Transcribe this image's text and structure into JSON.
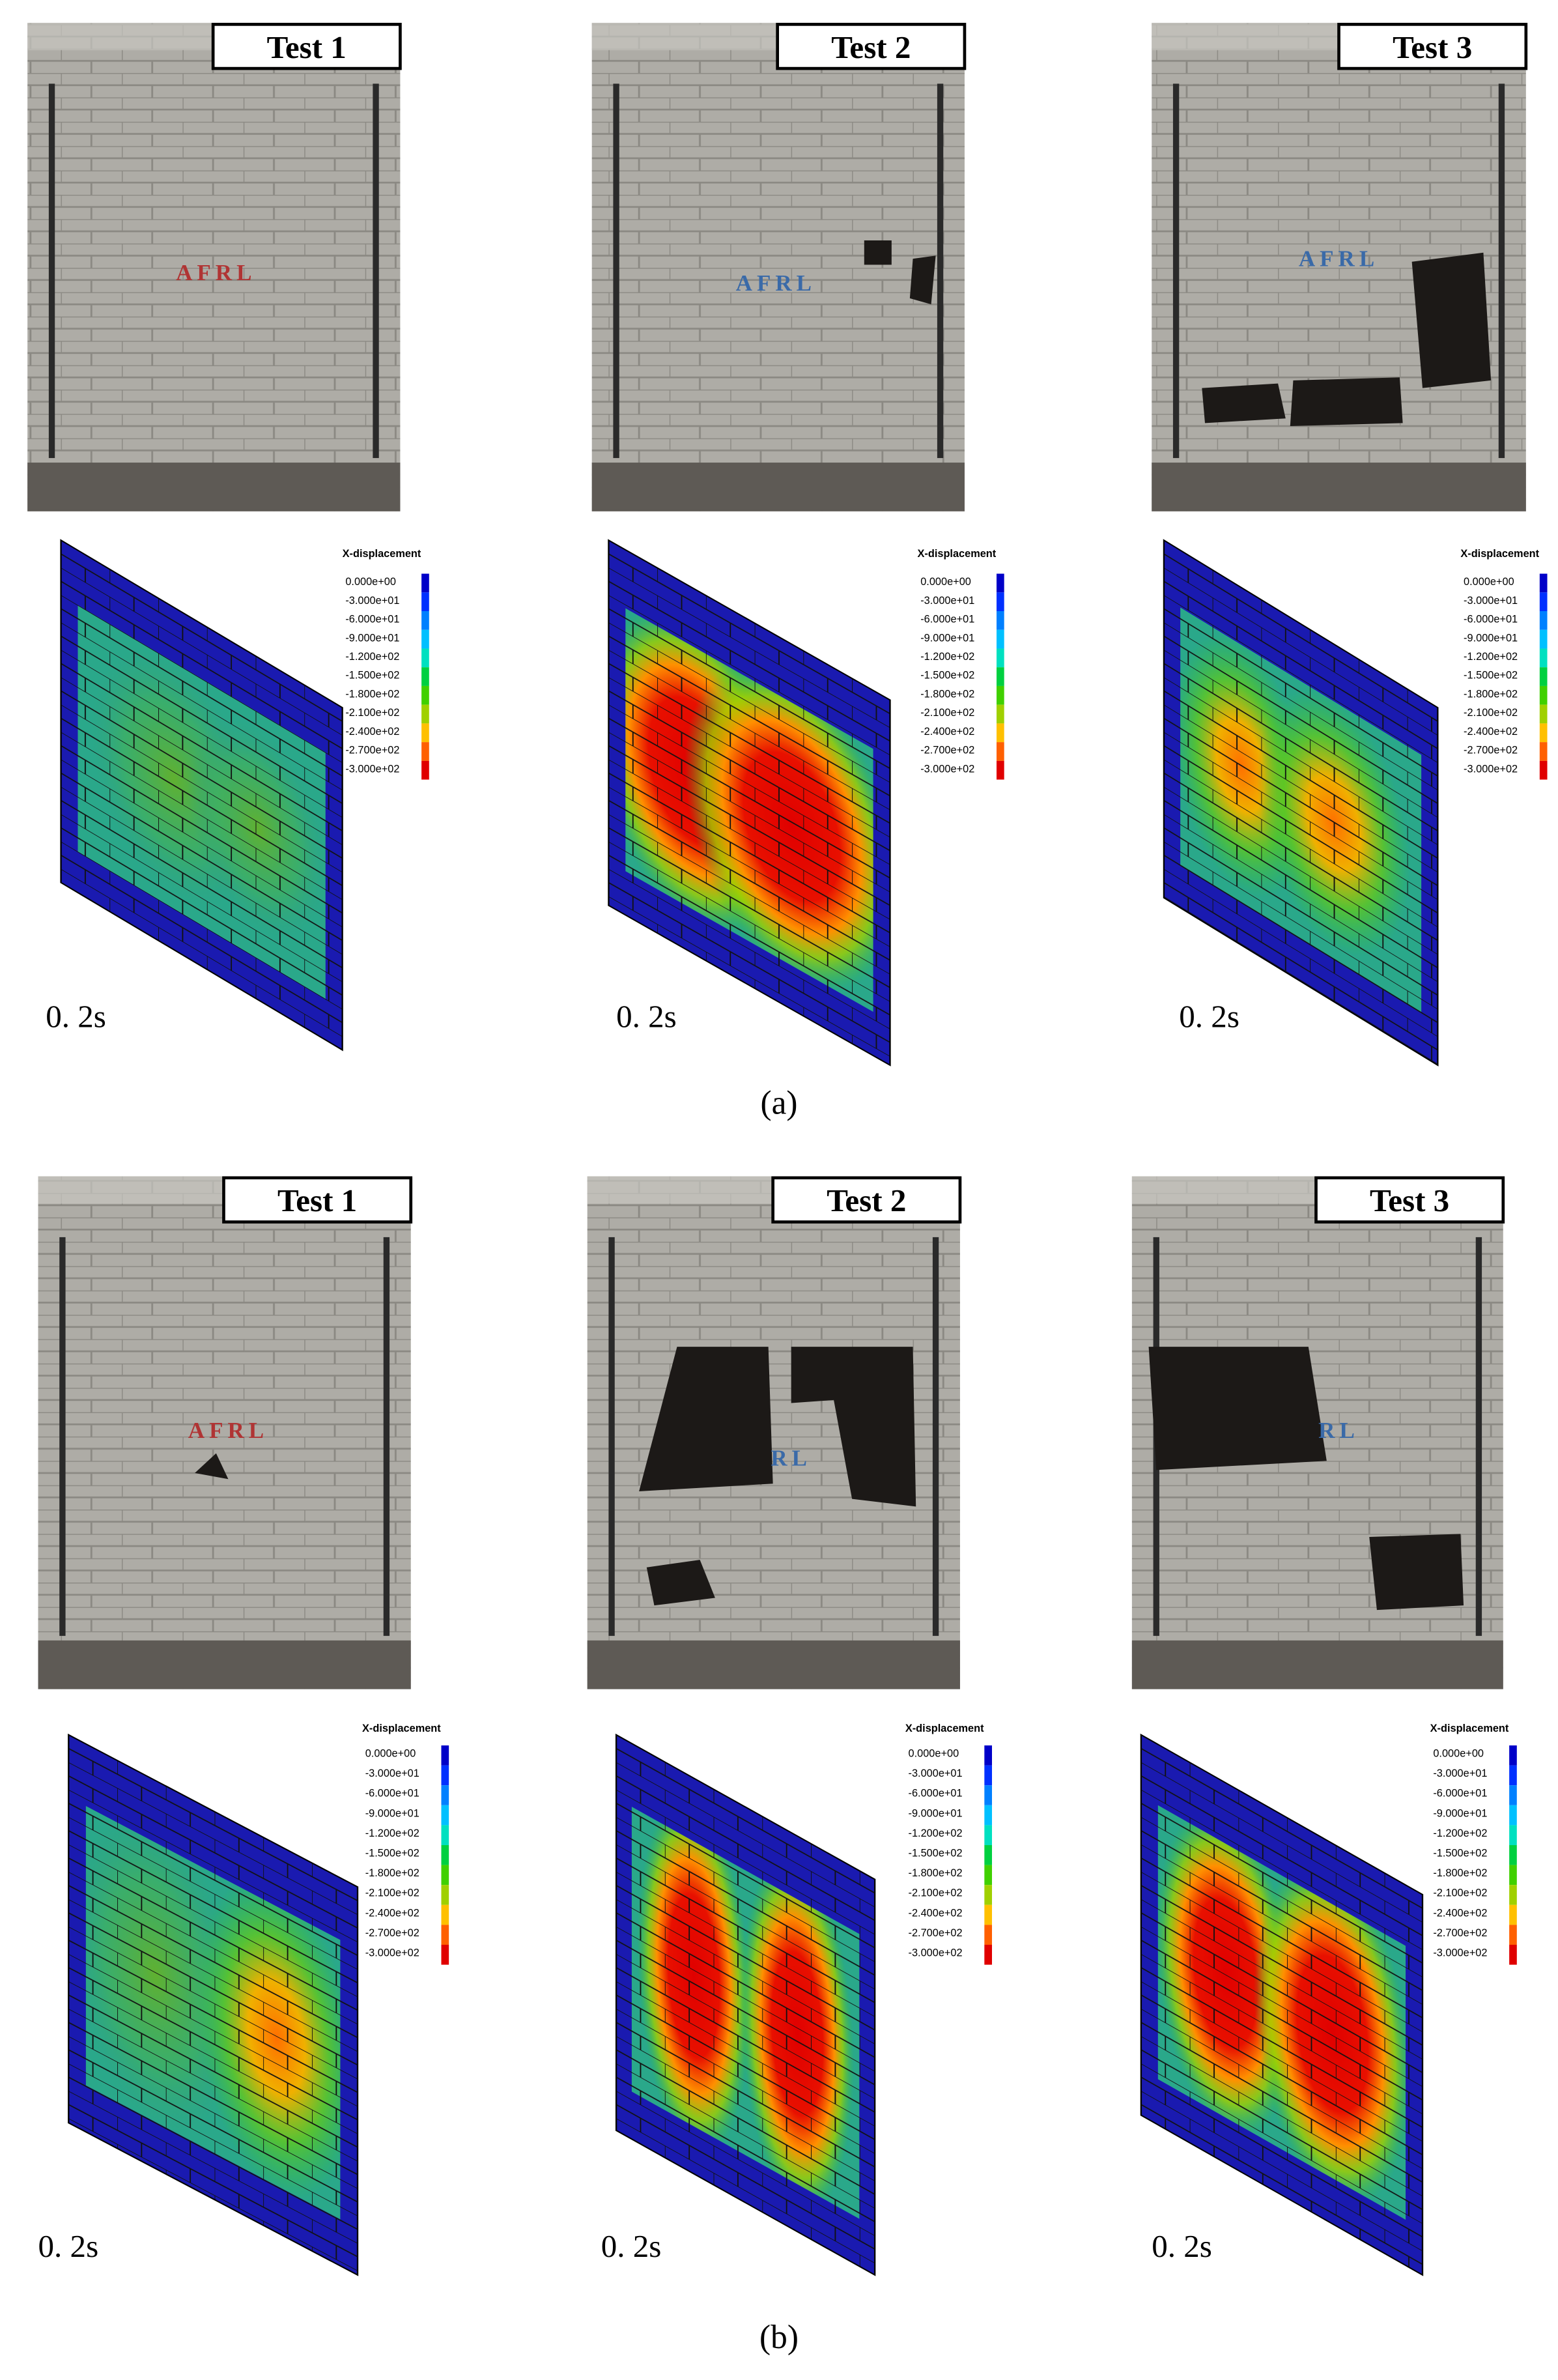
{
  "panels": [
    {
      "label": "(a)",
      "tests": [
        {
          "title": "Test 1",
          "photo_text": "AFRL",
          "time": "0. 2s"
        },
        {
          "title": "Test 2",
          "photo_text": "AFRL",
          "time": "0. 2s"
        },
        {
          "title": "Test 3",
          "photo_text": "AFRL",
          "time": "0. 2s"
        }
      ]
    },
    {
      "label": "(b)",
      "tests": [
        {
          "title": "Test 1",
          "photo_text": "AFRL",
          "time": "0. 2s"
        },
        {
          "title": "Test 2",
          "photo_text": "RL",
          "time": "0. 2s"
        },
        {
          "title": "Test 3",
          "photo_text": "RL",
          "time": "0. 2s"
        }
      ]
    }
  ],
  "legend": {
    "title": "X-displacement",
    "labels": [
      "0.000e+00",
      "-3.000e+01",
      "-6.000e+01",
      "-9.000e+01",
      "-1.200e+02",
      "-1.500e+02",
      "-1.800e+02",
      "-2.100e+02",
      "-2.400e+02",
      "-2.700e+02",
      "-3.000e+02"
    ]
  }
}
